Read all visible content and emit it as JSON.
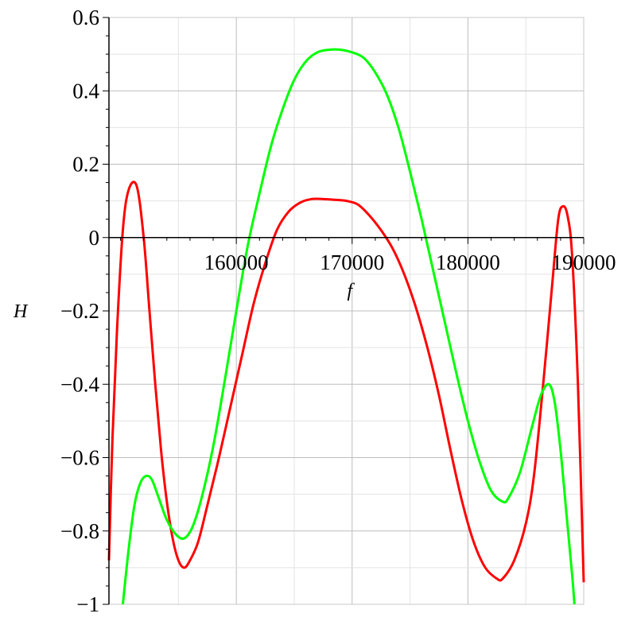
{
  "chart_data": {
    "type": "line",
    "xlabel": "f",
    "ylabel": "H",
    "xlim": [
      149000,
      190000
    ],
    "ylim": [
      -1,
      0.6
    ],
    "grid": true,
    "x_ticks": [
      160000,
      170000,
      180000,
      190000
    ],
    "x_tick_labels": [
      "160000",
      "170000",
      "180000",
      "190000"
    ],
    "y_ticks": [
      0.6,
      0.4,
      0.2,
      0,
      -0.2,
      -0.4,
      -0.6,
      -0.8,
      -1
    ],
    "y_tick_labels": [
      "0.6",
      "0.4",
      "0.2",
      "0",
      "−0.2",
      "−0.4",
      "−0.6",
      "−0.8",
      "−1"
    ],
    "series": [
      {
        "color": "#ff0000",
        "x": [
          149000,
          149300,
          149700,
          150200,
          150700,
          151400,
          152000,
          152500,
          153000,
          153500,
          154000,
          154500,
          155000,
          155500,
          156000,
          156700,
          157500,
          158500,
          159500,
          160500,
          161500,
          162500,
          163500,
          164500,
          165500,
          166500,
          167500,
          168500,
          169500,
          170500,
          171500,
          172500,
          173500,
          174500,
          175500,
          176500,
          177500,
          178500,
          179500,
          180500,
          181500,
          182500,
          183000,
          184000,
          185000,
          185700,
          186500,
          187300,
          187800,
          188200,
          188600,
          189000,
          189500,
          190000
        ],
        "y": [
          -0.88,
          -0.55,
          -0.25,
          0.02,
          0.13,
          0.14,
          0.0,
          -0.2,
          -0.4,
          -0.58,
          -0.72,
          -0.82,
          -0.88,
          -0.9,
          -0.88,
          -0.83,
          -0.73,
          -0.6,
          -0.46,
          -0.32,
          -0.18,
          -0.07,
          0.02,
          0.07,
          0.095,
          0.105,
          0.105,
          0.103,
          0.1,
          0.09,
          0.06,
          0.02,
          -0.03,
          -0.1,
          -0.19,
          -0.3,
          -0.43,
          -0.58,
          -0.72,
          -0.83,
          -0.9,
          -0.93,
          -0.93,
          -0.88,
          -0.78,
          -0.65,
          -0.4,
          -0.12,
          0.05,
          0.085,
          0.06,
          -0.05,
          -0.4,
          -0.94
        ]
      },
      {
        "color": "#00ff00",
        "x": [
          150200,
          150700,
          151200,
          151700,
          152200,
          152700,
          153300,
          154000,
          154800,
          155500,
          156200,
          157000,
          158000,
          159000,
          160000,
          161000,
          162000,
          163000,
          164000,
          165000,
          166000,
          167000,
          168000,
          169000,
          170000,
          171000,
          172000,
          173000,
          174000,
          175000,
          176000,
          177000,
          178000,
          179000,
          180000,
          181000,
          182000,
          183000,
          183500,
          184500,
          185500,
          186300,
          187000,
          187500,
          188000,
          188500,
          189000,
          189200
        ],
        "y": [
          -1.0,
          -0.85,
          -0.73,
          -0.67,
          -0.65,
          -0.66,
          -0.71,
          -0.77,
          -0.81,
          -0.82,
          -0.79,
          -0.71,
          -0.57,
          -0.39,
          -0.2,
          -0.02,
          0.12,
          0.25,
          0.35,
          0.43,
          0.48,
          0.505,
          0.512,
          0.512,
          0.505,
          0.49,
          0.45,
          0.39,
          0.3,
          0.18,
          0.05,
          -0.09,
          -0.23,
          -0.37,
          -0.5,
          -0.61,
          -0.69,
          -0.72,
          -0.71,
          -0.64,
          -0.52,
          -0.43,
          -0.4,
          -0.45,
          -0.58,
          -0.75,
          -0.92,
          -1.0
        ]
      }
    ]
  }
}
